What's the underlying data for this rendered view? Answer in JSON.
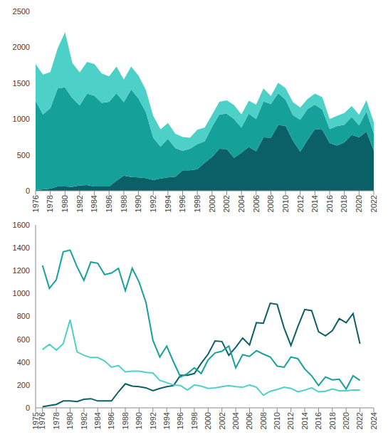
{
  "chart_data": [
    {
      "type": "area",
      "stacked": true,
      "x": [
        1976,
        1977,
        1978,
        1979,
        1980,
        1981,
        1982,
        1983,
        1984,
        1985,
        1986,
        1987,
        1988,
        1989,
        1990,
        1991,
        1992,
        1993,
        1994,
        1995,
        1996,
        1997,
        1998,
        1999,
        2000,
        2001,
        2002,
        2003,
        2004,
        2005,
        2006,
        2007,
        2008,
        2009,
        2010,
        2011,
        2012,
        2013,
        2014,
        2015,
        2016,
        2017,
        2018,
        2019,
        2020,
        2021,
        2022
      ],
      "xlim": [
        1976,
        2022
      ],
      "xticks": [
        1976,
        1978,
        1980,
        1982,
        1984,
        1986,
        1988,
        1990,
        1992,
        1994,
        1996,
        1998,
        2000,
        2002,
        2004,
        2006,
        2008,
        2010,
        2012,
        2014,
        2016,
        2018,
        2020,
        2022
      ],
      "ylim": [
        0,
        2500
      ],
      "yticks": [
        0,
        500,
        1000,
        1500,
        2000,
        2500
      ],
      "series": [
        {
          "color": "#0b5f66",
          "values": [
            10,
            20,
            30,
            60,
            60,
            55,
            75,
            80,
            60,
            60,
            60,
            140,
            210,
            190,
            185,
            175,
            150,
            170,
            185,
            195,
            285,
            285,
            300,
            390,
            470,
            585,
            580,
            460,
            530,
            610,
            550,
            745,
            740,
            915,
            905,
            700,
            545,
            710,
            860,
            850,
            665,
            630,
            675,
            780,
            745,
            825,
            560
          ]
        },
        {
          "color": "#16a09a",
          "values": [
            1245,
            1045,
            1120,
            1365,
            1380,
            1235,
            1115,
            1275,
            1265,
            1165,
            1180,
            1220,
            1025,
            1220,
            1100,
            920,
            590,
            445,
            540,
            400,
            270,
            300,
            350,
            300,
            420,
            480,
            495,
            540,
            350,
            465,
            450,
            500,
            470,
            445,
            365,
            355,
            445,
            430,
            340,
            280,
            195,
            270,
            245,
            250,
            165,
            280,
            240
          ]
        },
        {
          "color": "#4dd0c8",
          "values": [
            510,
            555,
            505,
            560,
            770,
            490,
            460,
            440,
            440,
            410,
            355,
            370,
            315,
            320,
            320,
            310,
            305,
            240,
            220,
            200,
            195,
            155,
            200,
            190,
            170,
            175,
            185,
            195,
            185,
            180,
            200,
            180,
            110,
            145,
            160,
            180,
            170,
            140,
            155,
            175,
            140,
            145,
            165,
            150,
            150,
            155,
            155
          ]
        }
      ]
    },
    {
      "type": "line",
      "x": [
        1976,
        1977,
        1978,
        1979,
        1980,
        1981,
        1982,
        1983,
        1984,
        1985,
        1986,
        1987,
        1988,
        1989,
        1990,
        1991,
        1992,
        1993,
        1994,
        1995,
        1996,
        1997,
        1998,
        1999,
        2000,
        2001,
        2002,
        2003,
        2004,
        2005,
        2006,
        2007,
        2008,
        2009,
        2010,
        2011,
        2012,
        2013,
        2014,
        2015,
        2016,
        2017,
        2018,
        2019,
        2020,
        2021,
        2022
      ],
      "xlim": [
        1975,
        2024
      ],
      "xticks": [
        1975,
        1976,
        1978,
        1980,
        1982,
        1984,
        1986,
        1988,
        1990,
        1992,
        1994,
        1996,
        1998,
        2000,
        2002,
        2004,
        2006,
        2008,
        2010,
        2012,
        2014,
        2016,
        2018,
        2020,
        2022,
        2024
      ],
      "ylim": [
        0,
        1600
      ],
      "yticks": [
        0,
        200,
        400,
        600,
        800,
        1000,
        1200,
        1400,
        1600
      ],
      "series": [
        {
          "color": "#0b5f66",
          "values": [
            10,
            20,
            30,
            60,
            60,
            55,
            75,
            80,
            60,
            60,
            60,
            140,
            210,
            190,
            185,
            175,
            150,
            170,
            185,
            195,
            285,
            285,
            300,
            390,
            470,
            585,
            580,
            460,
            530,
            610,
            550,
            745,
            740,
            915,
            905,
            700,
            545,
            710,
            860,
            850,
            665,
            630,
            675,
            780,
            745,
            825,
            560
          ]
        },
        {
          "color": "#16a09a",
          "values": [
            1245,
            1045,
            1120,
            1365,
            1380,
            1235,
            1115,
            1275,
            1265,
            1165,
            1180,
            1220,
            1025,
            1220,
            1100,
            920,
            590,
            445,
            540,
            400,
            270,
            300,
            350,
            300,
            420,
            480,
            495,
            540,
            350,
            465,
            450,
            500,
            470,
            445,
            365,
            355,
            445,
            430,
            340,
            280,
            195,
            270,
            245,
            250,
            165,
            280,
            240
          ]
        },
        {
          "color": "#4dd0c8",
          "values": [
            510,
            555,
            505,
            560,
            770,
            490,
            460,
            440,
            440,
            410,
            355,
            370,
            315,
            320,
            320,
            310,
            305,
            240,
            220,
            200,
            195,
            155,
            200,
            190,
            170,
            175,
            185,
            195,
            185,
            180,
            200,
            180,
            110,
            145,
            160,
            180,
            170,
            140,
            155,
            175,
            140,
            145,
            165,
            150,
            150,
            155,
            155
          ]
        }
      ]
    }
  ]
}
